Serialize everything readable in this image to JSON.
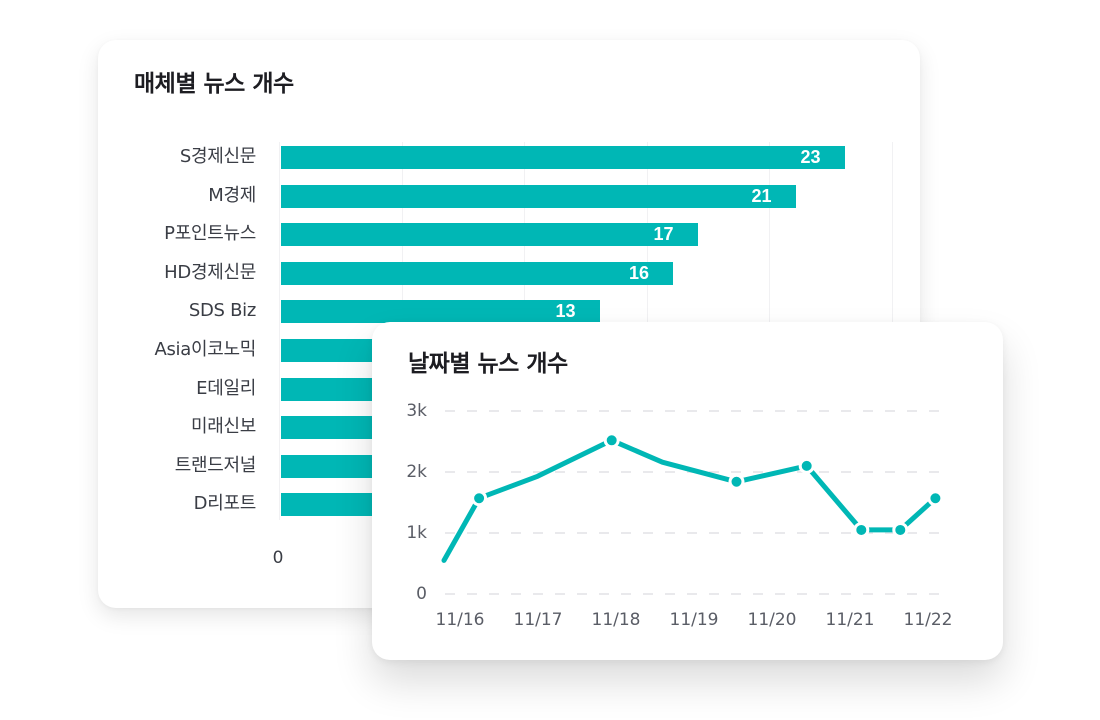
{
  "media_card": {
    "title": "매체별 뉴스 개수",
    "x_axis_zero": "0"
  },
  "date_card": {
    "title": "날짜별 뉴스 개수"
  },
  "colors": {
    "accent": "#00b7b5",
    "title_text": "#1d1d22",
    "axis_text": "#5a5d66",
    "gridline": "#e9e9ec",
    "card_bg": "#ffffff"
  },
  "chart_data": [
    {
      "type": "bar",
      "orientation": "horizontal",
      "title": "매체별 뉴스 개수",
      "categories": [
        "S경제신문",
        "M경제",
        "P포인트뉴스",
        "HD경제신문",
        "SDS Biz",
        "Asia이코노믹",
        "E데일리",
        "미래신보",
        "트랜드저널",
        "D리포트"
      ],
      "values": [
        23,
        21,
        17,
        16,
        13,
        null,
        null,
        null,
        null,
        null
      ],
      "value_labels": [
        "23",
        "21",
        "17",
        "16",
        "13",
        "",
        "",
        "",
        "",
        ""
      ],
      "xlabel": "",
      "ylabel": "",
      "x_ticks_visible": [
        "0"
      ],
      "xlim": [
        0,
        25
      ],
      "grid": true,
      "note": "Values for the last five bars are hidden behind the overlapping date card."
    },
    {
      "type": "line",
      "title": "날짜별 뉴스 개수",
      "x_tick_labels": [
        "11/16",
        "11/17",
        "11/18",
        "11/19",
        "11/20",
        "11/21",
        "11/22"
      ],
      "y_tick_labels": [
        "0",
        "1k",
        "2k",
        "3k"
      ],
      "ylim": [
        0,
        3000
      ],
      "grid": "horizontal dashed",
      "series": [
        {
          "name": "뉴스 개수",
          "points": [
            {
              "x": 0.0,
              "y": 550,
              "marker": false
            },
            {
              "x": 0.45,
              "y": 1570,
              "marker": true
            },
            {
              "x": 1.2,
              "y": 1930,
              "marker": false
            },
            {
              "x": 2.15,
              "y": 2520,
              "marker": true
            },
            {
              "x": 2.8,
              "y": 2160,
              "marker": false
            },
            {
              "x": 3.75,
              "y": 1840,
              "marker": true
            },
            {
              "x": 4.65,
              "y": 2100,
              "marker": true
            },
            {
              "x": 5.35,
              "y": 1050,
              "marker": true
            },
            {
              "x": 5.85,
              "y": 1050,
              "marker": true
            },
            {
              "x": 6.3,
              "y": 1570,
              "marker": true
            }
          ]
        }
      ]
    }
  ]
}
